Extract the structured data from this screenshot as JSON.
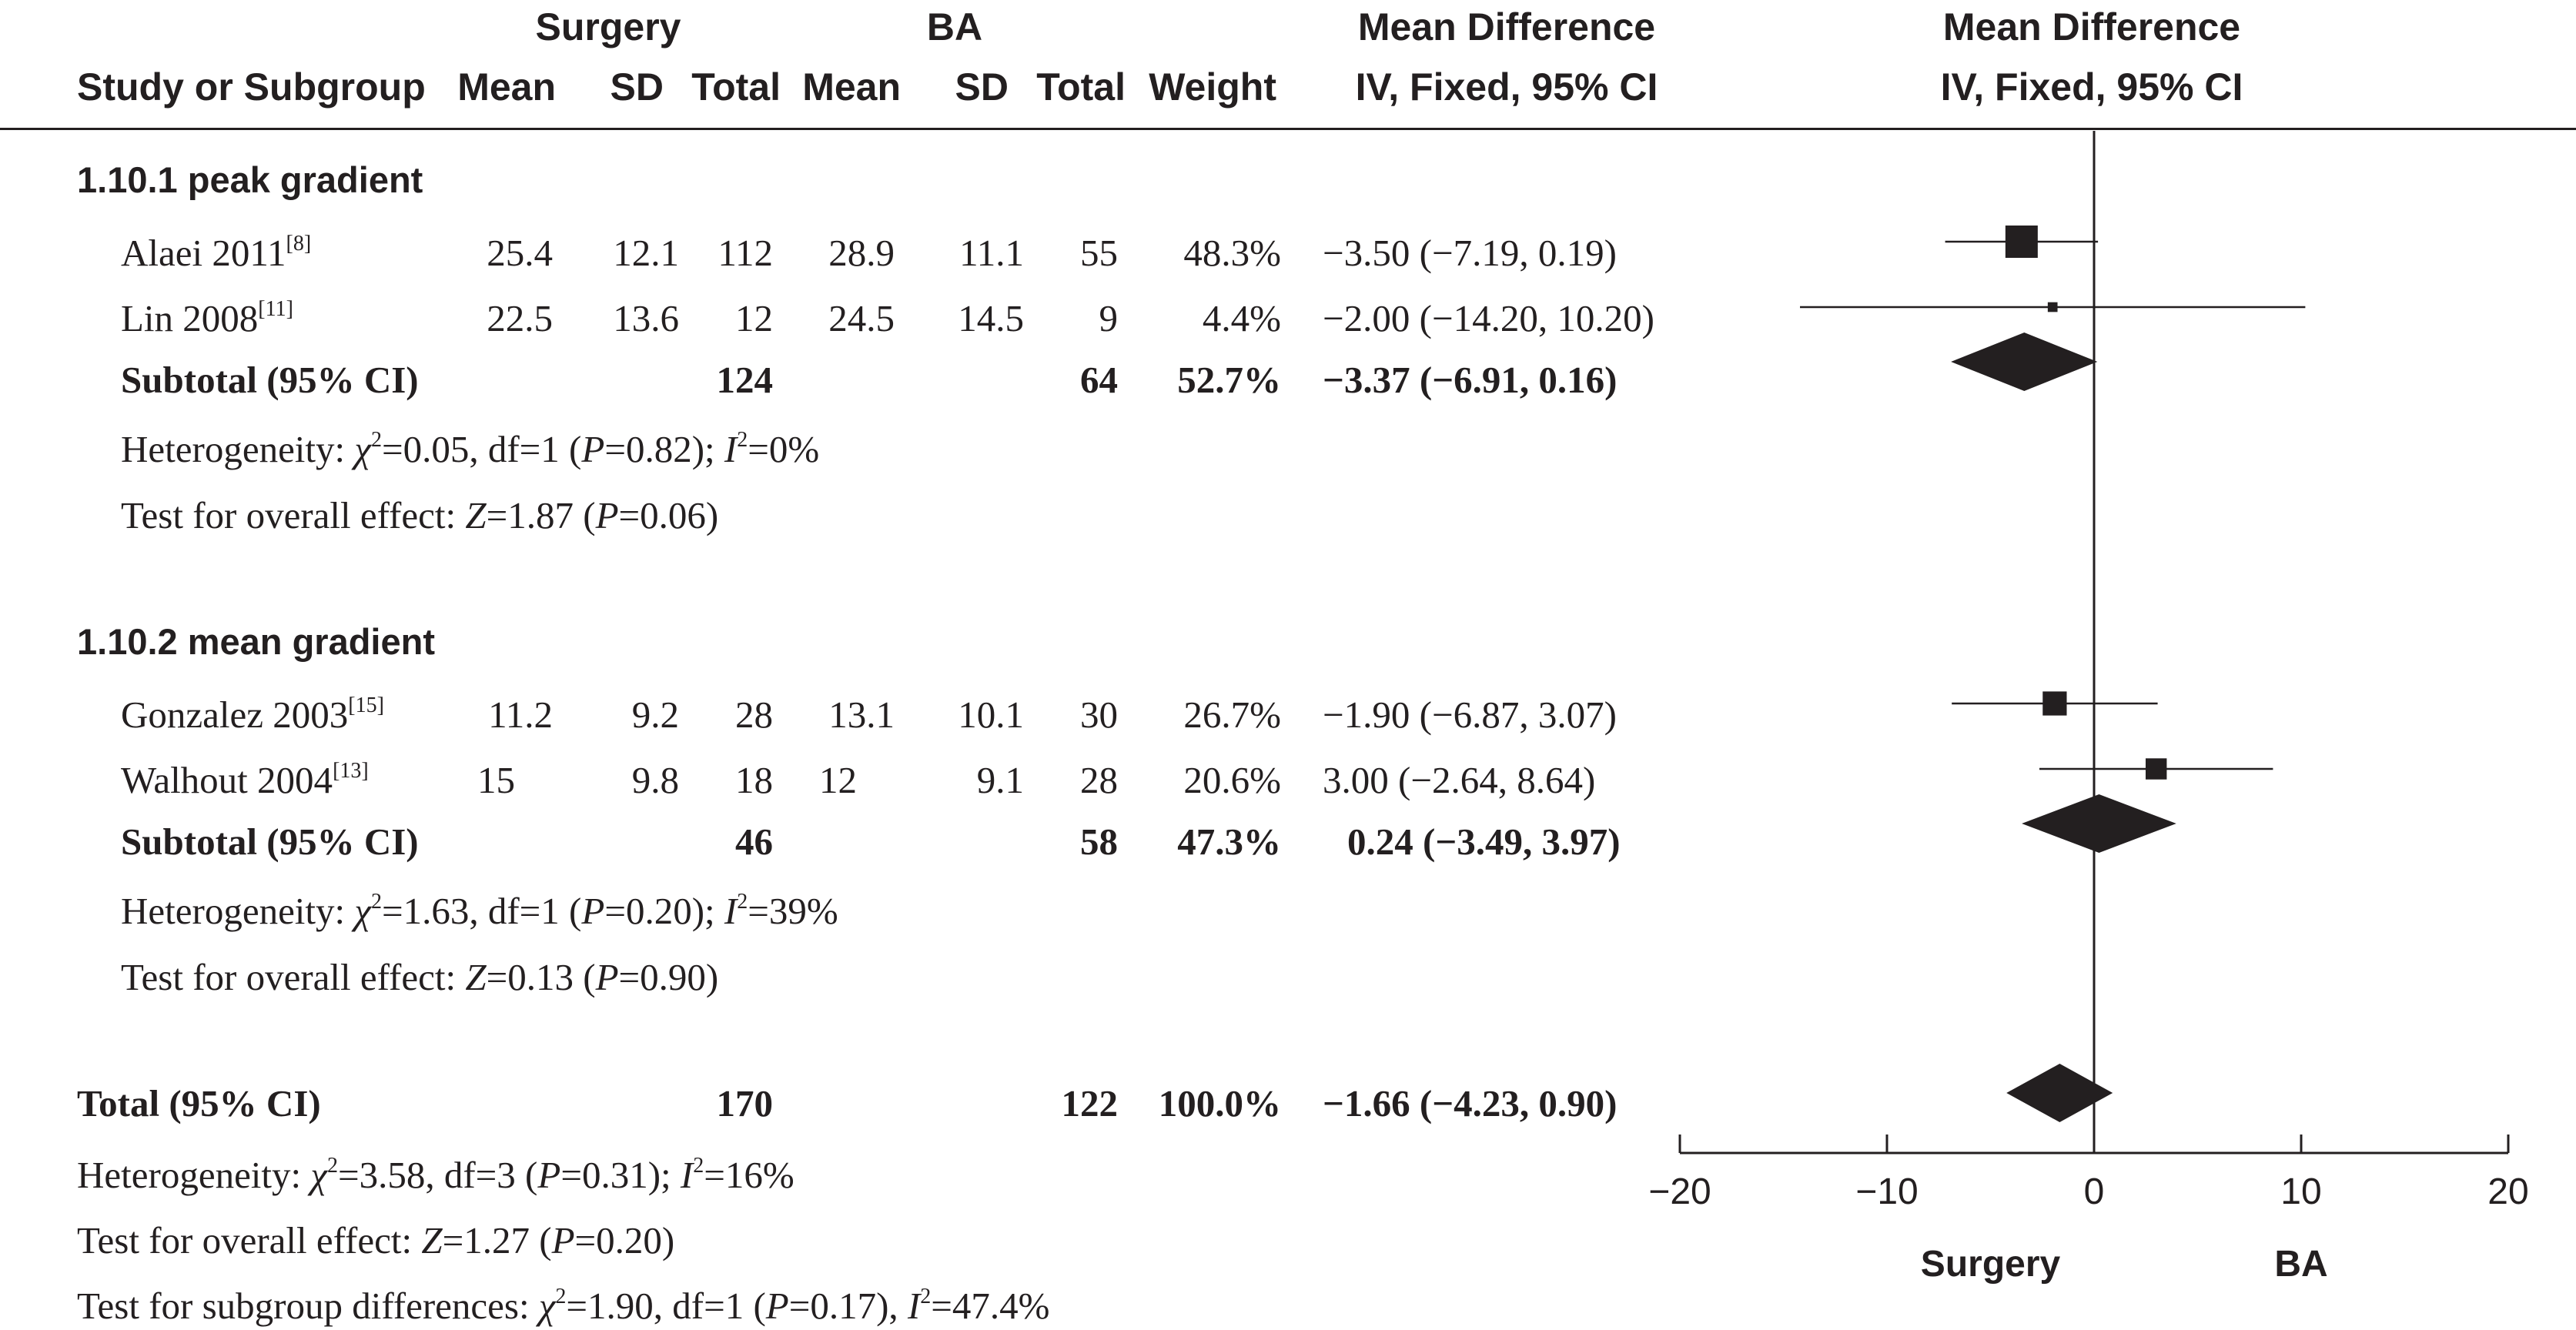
{
  "headers": {
    "group1": "Surgery",
    "group2": "BA",
    "study": "Study or Subgroup",
    "mean": "Mean",
    "sd": "SD",
    "total": "Total",
    "weight": "Weight",
    "md_title": "Mean Difference",
    "md_method": "IV, Fixed, 95% CI",
    "plot_title": "Mean Difference",
    "plot_method": "IV, Fixed, 95% CI"
  },
  "chart_data": {
    "type": "forest",
    "axis": {
      "xlim": [
        -20,
        20
      ],
      "ticks": [
        -20,
        -10,
        0,
        10,
        20
      ],
      "tick_labels": [
        "−20",
        "−10",
        "0",
        "10",
        "20"
      ],
      "left_label": "Surgery",
      "right_label": "BA"
    },
    "subgroups": [
      {
        "title": "1.10.1 peak gradient",
        "studies": [
          {
            "name": "Alaei 2011",
            "ref": "[8]",
            "s_mean": "25.4",
            "s_sd": "12.1",
            "s_total": "112",
            "b_mean": "28.9",
            "b_sd": "11.1",
            "b_total": "55",
            "weight_label": "48.3%",
            "ci_label": "−3.50 (−7.19, 0.19)",
            "md": -3.5,
            "lo": -7.19,
            "hi": 0.19,
            "weight": 48.3
          },
          {
            "name": "Lin 2008",
            "ref": "[11]",
            "s_mean": "22.5",
            "s_sd": "13.6",
            "s_total": "12",
            "b_mean": "24.5",
            "b_sd": "14.5",
            "b_total": "9",
            "weight_label": "4.4%",
            "ci_label": "−2.00 (−14.20, 10.20)",
            "md": -2.0,
            "lo": -14.2,
            "hi": 10.2,
            "weight": 4.4
          }
        ],
        "subtotal": {
          "label": "Subtotal (95% CI)",
          "s_total": "124",
          "b_total": "64",
          "weight_label": "52.7%",
          "ci_label": "−3.37 (−6.91, 0.16)",
          "md": -3.37,
          "lo": -6.91,
          "hi": 0.16
        },
        "het": {
          "prefix": "Heterogeneity: ",
          "chi": "χ",
          "chi_value": "=0.05, df=1 (",
          "p_var": "P",
          "p_value": "=0.82); ",
          "i_var": "I",
          "i_value": "=0%"
        },
        "effect": {
          "prefix": "Test for overall effect: ",
          "z_var": "Z",
          "z_value": "=1.87 (",
          "p_var": "P",
          "p_value": "=0.06)"
        }
      },
      {
        "title": "1.10.2 mean gradient",
        "studies": [
          {
            "name": "Gonzalez 2003",
            "ref": "[15]",
            "s_mean": "11.2",
            "s_sd": "9.2",
            "s_total": "28",
            "b_mean": "13.1",
            "b_sd": "10.1",
            "b_total": "30",
            "weight_label": "26.7%",
            "ci_label": "−1.90 (−6.87, 3.07)",
            "md": -1.9,
            "lo": -6.87,
            "hi": 3.07,
            "weight": 26.7
          },
          {
            "name": "Walhout 2004",
            "ref": "[13]",
            "s_mean": "15",
            "s_sd": "9.8",
            "s_total": "18",
            "b_mean": "12",
            "b_sd": "9.1",
            "b_total": "28",
            "weight_label": "20.6%",
            "ci_label": "3.00 (−2.64, 8.64)",
            "md": 3.0,
            "lo": -2.64,
            "hi": 8.64,
            "weight": 20.6
          }
        ],
        "subtotal": {
          "label": "Subtotal (95% CI)",
          "s_total": "46",
          "b_total": "58",
          "weight_label": "47.3%",
          "ci_label": "0.24 (−3.49, 3.97)",
          "md": 0.24,
          "lo": -3.49,
          "hi": 3.97
        },
        "het": {
          "prefix": "Heterogeneity: ",
          "chi": "χ",
          "chi_value": "=1.63, df=1 (",
          "p_var": "P",
          "p_value": "=0.20); ",
          "i_var": "I",
          "i_value": "=39%"
        },
        "effect": {
          "prefix": "Test for overall effect: ",
          "z_var": "Z",
          "z_value": "=0.13 (",
          "p_var": "P",
          "p_value": "=0.90)"
        }
      }
    ],
    "total": {
      "label": "Total (95% CI)",
      "s_total": "170",
      "b_total": "122",
      "weight_label": "100.0%",
      "ci_label": "−1.66 (−4.23, 0.90)",
      "md": -1.66,
      "lo": -4.23,
      "hi": 0.9
    },
    "overall_het": {
      "prefix": "Heterogeneity: ",
      "chi": "χ",
      "chi_value": "=3.58, df=3 (",
      "p_var": "P",
      "p_value": "=0.31); ",
      "i_var": "I",
      "i_value": "=16%"
    },
    "overall_effect": {
      "prefix": "Test for overall effect: ",
      "z_var": "Z",
      "z_value": "=1.27 (",
      "p_var": "P",
      "p_value": "=0.20)"
    },
    "subgroup_diff": {
      "prefix": "Test for subgroup differences: ",
      "chi": "χ",
      "chi_value": "=1.90, df=1 (",
      "p_var": "P",
      "p_value": "=0.17), ",
      "i_var": "I",
      "i_value": "=47.4%"
    }
  }
}
